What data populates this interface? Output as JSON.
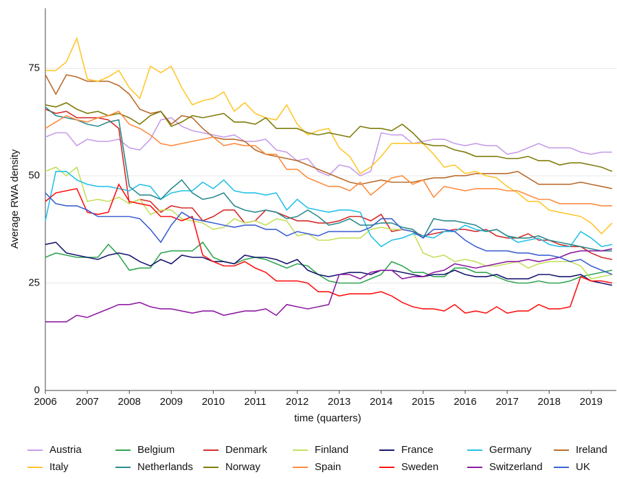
{
  "chart_data": {
    "type": "line",
    "x_label": "time (quarters)",
    "y_label": "Average RWA density",
    "x": [
      2006,
      2006.25,
      2006.5,
      2006.75,
      2007,
      2007.25,
      2007.5,
      2007.75,
      2008,
      2008.25,
      2008.5,
      2008.75,
      2009,
      2009.25,
      2009.5,
      2009.75,
      2010,
      2010.25,
      2010.5,
      2010.75,
      2011,
      2011.25,
      2011.5,
      2011.75,
      2012,
      2012.25,
      2012.5,
      2012.75,
      2013,
      2013.25,
      2013.5,
      2013.75,
      2014,
      2014.25,
      2014.5,
      2014.75,
      2015,
      2015.25,
      2015.5,
      2015.75,
      2016,
      2016.25,
      2016.5,
      2016.75,
      2017,
      2017.25,
      2017.5,
      2017.75,
      2018,
      2018.25,
      2018.5,
      2018.75,
      2019,
      2019.25,
      2019.5
    ],
    "xlim": [
      2006,
      2019.6
    ],
    "xticks": [
      2006,
      2007,
      2008,
      2009,
      2010,
      2011,
      2012,
      2013,
      2014,
      2015,
      2016,
      2017,
      2018,
      2019
    ],
    "ylim": [
      0,
      89
    ],
    "yticks": [
      0,
      25,
      50,
      75
    ],
    "grid": true,
    "series": [
      {
        "name": "Austria",
        "color": "#c79ce8",
        "values": [
          59,
          60,
          60,
          57,
          58.5,
          58,
          58,
          58.5,
          56.5,
          56,
          58.5,
          63,
          63.5,
          61.5,
          60.5,
          60,
          59.5,
          59,
          59.5,
          58,
          58,
          58.5,
          56,
          55.5,
          53.5,
          54,
          51,
          50,
          52.5,
          52,
          50,
          51,
          60,
          59.5,
          59.5,
          57.5,
          58,
          58.5,
          58.5,
          57.5,
          57,
          57.5,
          57,
          57,
          55,
          55.5,
          56.5,
          57.5,
          56.5,
          56.5,
          56.5,
          55.5,
          55,
          55.5,
          55.5
        ]
      },
      {
        "name": "Belgium",
        "color": "#2ea44f",
        "values": [
          31,
          32,
          31.5,
          31,
          31,
          31,
          34,
          31.5,
          28,
          28.5,
          28.5,
          32,
          32.5,
          32.5,
          32.5,
          34.5,
          31,
          30,
          29.5,
          30.5,
          31,
          30.5,
          29.5,
          28.5,
          29.5,
          29,
          27,
          25.5,
          25,
          25,
          25,
          26,
          27,
          30,
          29,
          27.5,
          27.5,
          26.5,
          26.5,
          28.5,
          28.5,
          27.5,
          27.5,
          26.5,
          25.5,
          25,
          25,
          25.5,
          25,
          25,
          25.5,
          26.5,
          27,
          27.5,
          28
        ]
      },
      {
        "name": "Denmark",
        "color": "#d42a2a",
        "values": [
          65.5,
          64.5,
          65,
          63.5,
          63.5,
          63.5,
          63,
          61,
          43.5,
          44.5,
          44,
          41.5,
          43,
          42.5,
          42.5,
          39.5,
          40.5,
          42,
          42,
          39,
          39.5,
          42,
          41.5,
          40.5,
          39.5,
          39.5,
          39,
          39,
          39.5,
          40.5,
          40.5,
          39.5,
          41,
          37,
          37.5,
          37,
          36,
          36.5,
          37,
          37.5,
          37.5,
          37,
          37.5,
          36,
          35.5,
          35.5,
          36.5,
          35,
          35,
          34,
          33.5,
          33.5,
          32,
          31,
          30.5
        ]
      },
      {
        "name": "Finland",
        "color": "#c3e05a",
        "values": [
          51,
          52,
          50,
          52,
          44,
          44.5,
          44,
          45,
          43.5,
          44.5,
          41,
          42,
          42,
          40,
          39.5,
          39,
          37.5,
          38,
          40,
          39,
          39.5,
          38.5,
          40,
          39.5,
          36,
          36.5,
          35,
          35,
          35.5,
          35.5,
          35.5,
          37.5,
          38,
          37.5,
          37.5,
          37,
          32,
          31,
          31.5,
          30,
          30.5,
          30,
          29,
          29,
          29.5,
          30,
          28.5,
          29.5,
          30,
          30,
          30,
          29,
          26,
          26.5,
          27
        ]
      },
      {
        "name": "France",
        "color": "#14146e",
        "values": [
          34,
          34.5,
          32,
          31.5,
          31,
          30.5,
          31.5,
          32,
          31.5,
          30,
          29,
          30.5,
          29.5,
          31.5,
          31,
          31,
          30,
          30,
          29.5,
          31.5,
          31,
          31,
          30.5,
          29.5,
          30.5,
          28,
          27,
          26.5,
          27,
          27.5,
          27.5,
          27,
          28,
          28,
          27.5,
          27,
          26.5,
          27,
          27,
          28,
          27,
          26.5,
          26.5,
          27,
          26,
          26,
          26,
          27,
          27,
          26.5,
          26.5,
          27,
          25.5,
          25,
          24.5
        ]
      },
      {
        "name": "Germany",
        "color": "#22c0e8",
        "values": [
          39.5,
          51,
          51,
          49,
          48,
          47.5,
          47.5,
          47,
          46.5,
          48,
          47.5,
          44.5,
          46,
          46.5,
          46.5,
          48.5,
          47,
          49,
          46.5,
          46,
          46,
          45.5,
          46,
          42,
          44.5,
          42.5,
          42,
          41.5,
          42,
          42,
          41.5,
          36,
          33.5,
          35,
          35.5,
          36.5,
          36,
          35.5,
          37,
          37,
          38.5,
          37.5,
          37,
          37.5,
          36,
          34.5,
          35,
          35.5,
          34,
          33.5,
          33.5,
          37,
          35.5,
          33.5,
          34
        ]
      },
      {
        "name": "Ireland",
        "color": "#b8692a",
        "values": [
          73.5,
          69,
          73.5,
          73,
          72,
          72,
          72,
          71,
          69,
          65.5,
          64.5,
          65,
          62,
          64,
          63.5,
          61,
          59,
          58.5,
          58.5,
          58,
          56,
          55,
          54.5,
          54,
          53.5,
          52.5,
          51.5,
          50.5,
          49.5,
          48.5,
          48,
          48.5,
          49,
          48.5,
          48.5,
          48.5,
          49,
          49.5,
          49.5,
          50,
          50,
          50.5,
          50.5,
          50.5,
          50.5,
          51,
          49.5,
          48,
          48,
          48,
          48,
          48.5,
          48,
          47.5,
          47
        ]
      },
      {
        "name": "Italy",
        "color": "#ffc62a",
        "values": [
          74.5,
          74.5,
          76.5,
          82,
          72.5,
          72,
          73,
          74.5,
          70.5,
          68,
          75.5,
          74,
          75.5,
          70.5,
          66.5,
          67.5,
          68,
          69.5,
          65,
          67,
          64.5,
          63.5,
          63,
          66.5,
          62,
          59.5,
          60.5,
          61,
          56.5,
          54.5,
          50.5,
          52,
          54.5,
          57.5,
          57.5,
          57.5,
          57.5,
          55,
          52,
          52.5,
          50.5,
          51,
          50,
          49.5,
          47.5,
          46,
          44,
          44,
          42,
          41.5,
          41,
          40.5,
          39,
          36.5,
          39
        ]
      },
      {
        "name": "Netherlands",
        "color": "#2a8a8c",
        "values": [
          66,
          64,
          63.5,
          63,
          62,
          61.5,
          62.5,
          63,
          47.5,
          45.5,
          45.5,
          44.5,
          47,
          49,
          46,
          44.5,
          45,
          46,
          43,
          42,
          41.5,
          42,
          41.5,
          40,
          40.5,
          42,
          40.5,
          38.5,
          39,
          40,
          38.5,
          38.5,
          39,
          39,
          38,
          37.5,
          35.5,
          40,
          39.5,
          39.5,
          39,
          38.5,
          37,
          37.5,
          36,
          35.5,
          35.5,
          36,
          35,
          34.5,
          34,
          33.5,
          33,
          32.5,
          32.5
        ]
      },
      {
        "name": "Norway",
        "color": "#7d7a08",
        "values": [
          66.5,
          66,
          67,
          65.5,
          64.5,
          65,
          64,
          64.5,
          63.5,
          62,
          64,
          65,
          61.5,
          62.5,
          64,
          63.5,
          64,
          64.5,
          62.5,
          62.5,
          62,
          63.5,
          61,
          61,
          61,
          60,
          59.5,
          60,
          59.5,
          59,
          61.5,
          61,
          61,
          60.5,
          62,
          60,
          57.5,
          57,
          57,
          56,
          55.5,
          54.5,
          54.5,
          54.5,
          54,
          54,
          54.5,
          53.5,
          53.5,
          52.5,
          53,
          53,
          52.5,
          52,
          51
        ]
      },
      {
        "name": "Spain",
        "color": "#ff8a3c",
        "values": [
          61,
          62.5,
          64,
          63,
          62.5,
          63.5,
          64,
          65,
          62,
          61,
          59.5,
          57.5,
          57,
          57.5,
          58,
          58.5,
          59,
          57,
          57.5,
          57,
          57,
          55,
          55,
          51.5,
          51.5,
          49.5,
          48.5,
          47.5,
          47.5,
          46.5,
          48.5,
          45.5,
          47.5,
          49.5,
          50,
          48,
          49,
          45,
          47.5,
          47,
          46.5,
          47,
          47,
          47,
          46.5,
          46.5,
          45.5,
          44.5,
          44.5,
          43.5,
          43.5,
          43.5,
          43.5,
          43,
          43
        ]
      },
      {
        "name": "Sweden",
        "color": "#ff1010",
        "values": [
          44,
          46,
          46.5,
          47,
          41.5,
          41,
          41.5,
          48,
          44,
          43.5,
          43,
          40.5,
          40.5,
          39.5,
          40.5,
          31.5,
          30,
          29,
          29,
          30,
          28.5,
          27.5,
          25.5,
          25.5,
          25.5,
          25,
          23,
          23,
          22,
          22.5,
          22.5,
          22.5,
          23,
          22,
          20.5,
          19.5,
          19,
          19,
          18.5,
          20,
          18,
          18.5,
          18,
          19.5,
          18,
          18.5,
          18.5,
          20,
          19,
          19,
          19.5,
          26.5,
          25.5,
          25.5,
          25
        ]
      },
      {
        "name": "Switzerland",
        "color": "#8c1aa0",
        "values": [
          16,
          16,
          16,
          17.5,
          17,
          18,
          19,
          20,
          20,
          20.5,
          19.5,
          19,
          19,
          18.5,
          18,
          18.5,
          18.5,
          17.5,
          18,
          18.5,
          18.5,
          19,
          17.5,
          20,
          19.5,
          19,
          19.5,
          20,
          27,
          27,
          26,
          27.5,
          28,
          28,
          26,
          26.5,
          26.5,
          27.5,
          28,
          29.5,
          29,
          28.5,
          29,
          29.5,
          30,
          30,
          30.5,
          30,
          30.5,
          31,
          32,
          32.5,
          32.5,
          32.5,
          33
        ]
      },
      {
        "name": "UK",
        "color": "#3a5fd0",
        "values": [
          46,
          43.5,
          43,
          43,
          42,
          40.5,
          40.5,
          40.5,
          40.5,
          40,
          37.5,
          34.5,
          38.5,
          41.5,
          40,
          39.5,
          39,
          38.5,
          38,
          38.5,
          38.5,
          37.5,
          37.5,
          36,
          37,
          36.5,
          36,
          37,
          37,
          37,
          37,
          38,
          40,
          40,
          37.5,
          37,
          35.5,
          37.5,
          37.5,
          37,
          35,
          33.5,
          32.5,
          32.5,
          32.5,
          32,
          32,
          31.5,
          31.5,
          31,
          30,
          30.5,
          29,
          28,
          27
        ]
      }
    ]
  }
}
